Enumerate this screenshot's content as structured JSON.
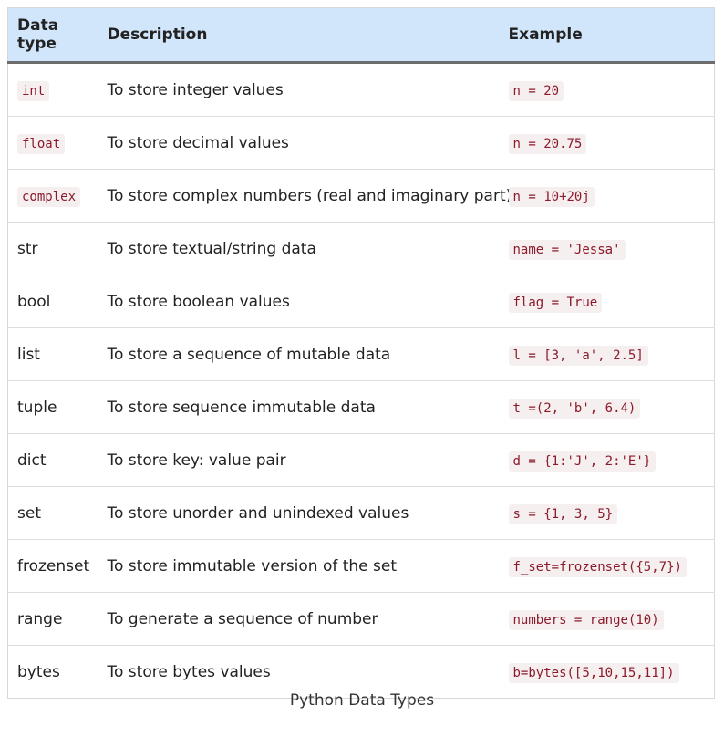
{
  "table": {
    "headers": [
      "Data type",
      "Description",
      "Example"
    ],
    "rows": [
      {
        "type": "int",
        "type_code": true,
        "description": "To store integer values",
        "example": "n = 20"
      },
      {
        "type": "float",
        "type_code": true,
        "description": "To store decimal values",
        "example": "n = 20.75"
      },
      {
        "type": "complex",
        "type_code": true,
        "description": "To store complex numbers (real and imaginary part)",
        "example": "n = 10+20j"
      },
      {
        "type": "str",
        "type_code": false,
        "description": "To store textual/string data",
        "example": "name = 'Jessa'"
      },
      {
        "type": "bool",
        "type_code": false,
        "description": "To store boolean values",
        "example": "flag = True"
      },
      {
        "type": "list",
        "type_code": false,
        "description": "To store a sequence of mutable data",
        "example": "l = [3, 'a', 2.5]"
      },
      {
        "type": "tuple",
        "type_code": false,
        "description": "To store sequence immutable data",
        "example": "t =(2, 'b', 6.4)"
      },
      {
        "type": "dict",
        "type_code": false,
        "description": "To store key: value pair",
        "example": "d = {1:'J', 2:'E'}"
      },
      {
        "type": "set",
        "type_code": false,
        "description": "To store unorder and unindexed values",
        "example": "s = {1, 3, 5}"
      },
      {
        "type": "frozenset",
        "type_code": false,
        "description": "To store immutable version of the set",
        "example": "f_set=frozenset({5,7})"
      },
      {
        "type": "range",
        "type_code": false,
        "description": "To generate a sequence of number",
        "example": "numbers = range(10)"
      },
      {
        "type": "bytes",
        "type_code": false,
        "description": "To store bytes values",
        "example": "b=bytes([5,10,15,11])"
      }
    ]
  },
  "caption": "Python Data Types",
  "colors": {
    "header_bg": "#d2e6fb",
    "code_text": "#8b1a2b",
    "code_bg": "#f6efef"
  }
}
